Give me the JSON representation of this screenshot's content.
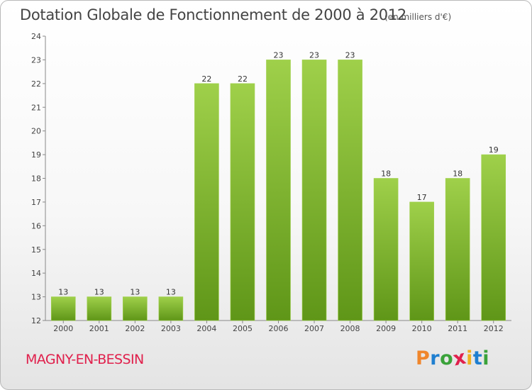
{
  "header": {
    "title": "Dotation Globale de Fonctionnement de 2000 à 2012",
    "subtitle": "(en milliers d'€)"
  },
  "footer": {
    "commune": "MAGNY-EN-BESSIN",
    "logo_text": "Proxiti",
    "logo_colors": [
      "#f0862c",
      "#1f7fd0",
      "#3aa23a",
      "#e0204c",
      "#f0b020",
      "#1f7fd0",
      "#3aa23a"
    ]
  },
  "chart_data": {
    "type": "bar",
    "categories": [
      "2000",
      "2001",
      "2002",
      "2003",
      "2004",
      "2005",
      "2006",
      "2007",
      "2008",
      "2009",
      "2010",
      "2011",
      "2012"
    ],
    "values": [
      13,
      13,
      13,
      13,
      22,
      22,
      23,
      23,
      23,
      18,
      17,
      18,
      19
    ],
    "data_labels": [
      "13",
      "13",
      "13",
      "13",
      "22",
      "22",
      "23",
      "23",
      "23",
      "18",
      "17",
      "18",
      "19"
    ],
    "y_ticks": [
      12,
      13,
      14,
      15,
      16,
      17,
      18,
      19,
      20,
      21,
      22,
      23,
      24
    ],
    "ylim": [
      12,
      24
    ],
    "grid": false,
    "legend": "none",
    "bar_color": "#7ab82e",
    "bar_color_light": "#9fd04a",
    "bar_color_dark": "#5f9618",
    "axis_color": "#888888"
  }
}
